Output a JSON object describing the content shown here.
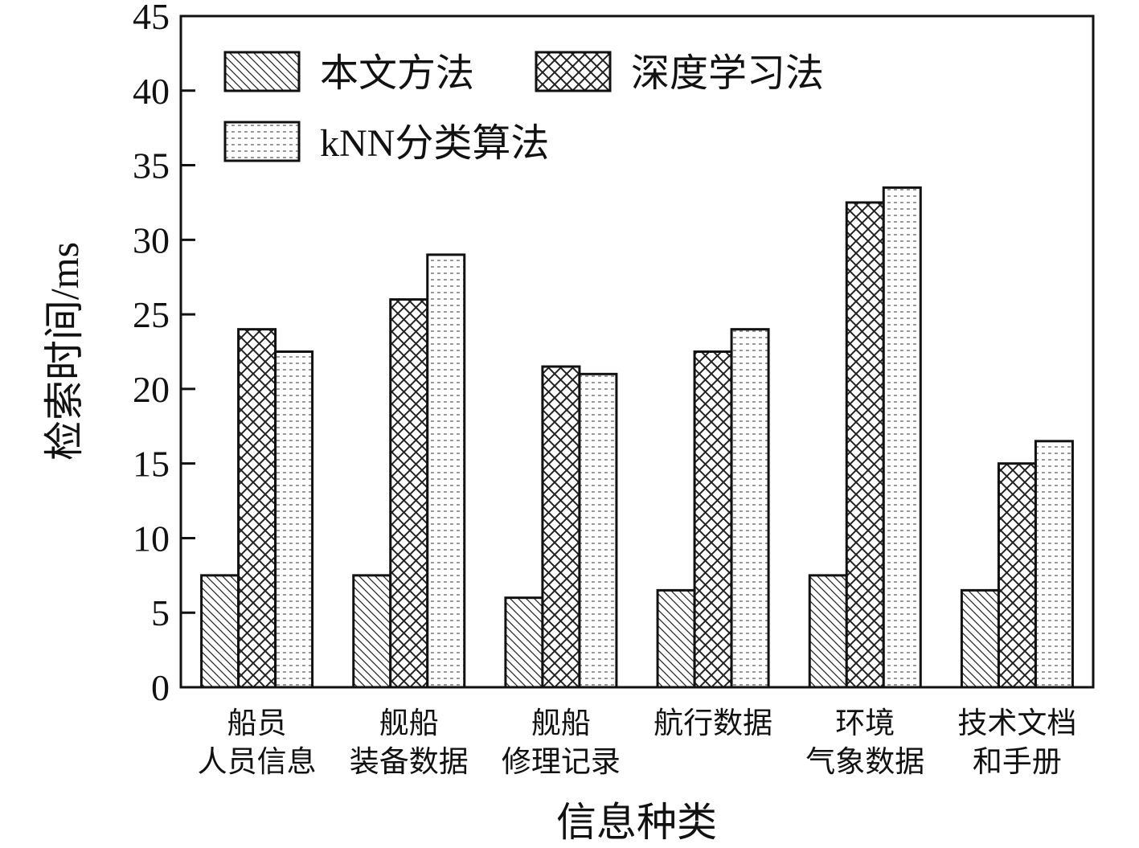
{
  "chart_data": {
    "type": "bar",
    "xlabel": "信息种类",
    "ylabel": "检索时间/ms",
    "ylim": [
      0,
      45
    ],
    "yticks": [
      0,
      5,
      10,
      15,
      20,
      25,
      30,
      35,
      40,
      45
    ],
    "grid": false,
    "legend_position": "top-left",
    "categories": [
      [
        "船员",
        "人员信息"
      ],
      [
        "舰船",
        "装备数据"
      ],
      [
        "舰船",
        "修理记录"
      ],
      [
        "航行数据"
      ],
      [
        "环境",
        "气象数据"
      ],
      [
        "技术文档",
        "和手册"
      ]
    ],
    "series": [
      {
        "name": "本文方法",
        "pattern": "diagonal-hatch",
        "values": [
          7.5,
          7.5,
          6.0,
          6.5,
          7.5,
          6.5
        ]
      },
      {
        "name": "深度学习法",
        "pattern": "crosshatch",
        "values": [
          24.0,
          26.0,
          21.5,
          22.5,
          32.5,
          15.0
        ]
      },
      {
        "name": "kNN分类算法",
        "pattern": "horizontal-dash",
        "values": [
          22.5,
          29.0,
          21.0,
          24.0,
          33.5,
          16.5
        ]
      }
    ]
  }
}
